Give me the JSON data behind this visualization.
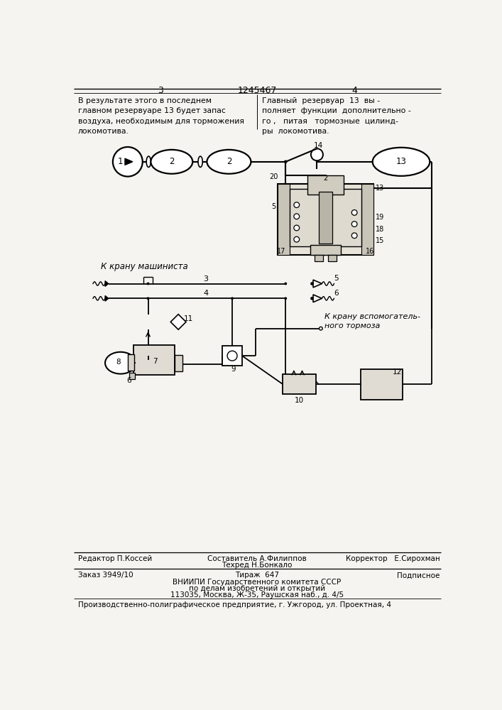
{
  "bg_color": "#f5f4f0",
  "title_page_left": "3",
  "title_center": "1245467",
  "title_page_right": "4",
  "text_left": "В результате этого в последнем\nглавном резервуаре 13 будет запас\nвоздуха, необходимым для торможения\nлокомотива.",
  "text_right": "Главный  резервуар  13  вы -\nполняет  функции  дополнительно -\nго ,   питая   тормозные  цилинд-\nры  локомотива.",
  "footer_line1_left": "Редактор П.Коссей",
  "footer_line1_center1": "Составитель А.Филиппов",
  "footer_line1_center2": "Техред Н.Бонкало",
  "footer_line1_right": "Корректор   Е.Сирохман",
  "footer_line2_left": "Заказ 3949/10",
  "footer_line2_center": "Тираж  647",
  "footer_line2_right": "Подписное",
  "footer_line3": "ВНИИПИ Государственного комитета СССР",
  "footer_line4": "по делам изобретений и открытий",
  "footer_line5": "113035, Москва, Ж-35, Раушская наб., д. 4/5",
  "footer_line6": "Производственно-полиграфическое предприятие, г. Ужгород, ул. Проектная, 4"
}
